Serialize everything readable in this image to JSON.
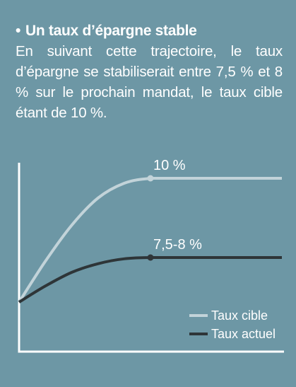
{
  "header": {
    "bullet": "•",
    "title": "Un taux d’épargne stable",
    "body": "En suivant cette trajectoire, le taux d’épargne se stabiliserait entre 7,5 % et 8 % sur le prochain mandat, le taux cible étant de 10 %."
  },
  "colors": {
    "background": "#6d97a5",
    "axis": "#ffffff",
    "target_line": "#c2d3d9",
    "current_line": "#2e3538"
  },
  "chart_data": {
    "type": "line",
    "title": "",
    "xlabel": "",
    "ylabel": "",
    "grid": false,
    "legend_placement": "bottom-right",
    "series": [
      {
        "name": "Taux cible",
        "color": "#c2d3d9",
        "x": [
          0,
          0.1,
          0.2,
          0.3,
          0.4,
          0.5,
          0.6,
          0.7,
          0.8,
          0.9,
          1.0
        ],
        "values": [
          0.0,
          0.33,
          0.62,
          0.84,
          0.96,
          1.0,
          1.0,
          1.0,
          1.0,
          1.0,
          1.0
        ],
        "marker_at_x": 0.5,
        "annotation": "10 %"
      },
      {
        "name": "Taux actuel",
        "color": "#2e3538",
        "x": [
          0,
          0.1,
          0.2,
          0.3,
          0.4,
          0.5,
          0.6,
          0.7,
          0.8,
          0.9,
          1.0
        ],
        "values": [
          0.0,
          0.13,
          0.24,
          0.31,
          0.35,
          0.36,
          0.36,
          0.36,
          0.36,
          0.36,
          0.36
        ],
        "marker_at_x": 0.5,
        "annotation": "7,5-8 %"
      }
    ]
  }
}
